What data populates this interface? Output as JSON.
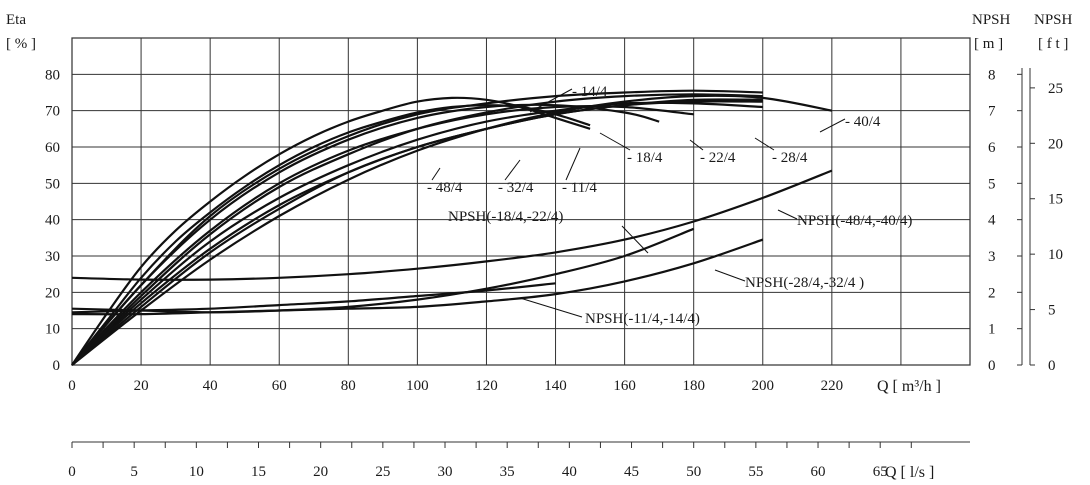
{
  "chart_data": {
    "type": "line",
    "left_axis": {
      "label_line1": "Eta",
      "label_line2": "[ % ]",
      "range": [
        0,
        90
      ],
      "ticks": [
        0,
        10,
        20,
        30,
        40,
        50,
        60,
        70,
        80
      ]
    },
    "npsh_m_axis": {
      "label_line1": "NPSH",
      "label_line2": "[ m ]",
      "range": [
        0,
        9
      ],
      "ticks": [
        0,
        1,
        2,
        3,
        4,
        5,
        6,
        7,
        8
      ]
    },
    "npsh_ft_axis": {
      "label_line1": "NPSH",
      "label_line2": "[ f t ]",
      "range": [
        0,
        29.5
      ],
      "ticks": [
        0,
        5,
        10,
        15,
        20,
        25
      ]
    },
    "x_axis": {
      "label": "Q [ m³/h ]",
      "range": [
        0,
        260
      ],
      "ticks": [
        0,
        20,
        40,
        60,
        80,
        100,
        120,
        140,
        160,
        180,
        200,
        220
      ]
    },
    "x2_axis": {
      "label": "Q [ l/s ]",
      "ticks": [
        0,
        5,
        10,
        15,
        20,
        25,
        30,
        35,
        40,
        45,
        50,
        55,
        60,
        65
      ]
    },
    "grid": true,
    "efficiency_series": [
      {
        "name": "- 14/4",
        "x": [
          0,
          10,
          20,
          30,
          40,
          50,
          60,
          70,
          80,
          90,
          100,
          110,
          120,
          130,
          140,
          150
        ],
        "y": [
          0,
          14,
          27,
          37,
          45,
          52,
          58,
          63,
          67,
          70,
          72.5,
          73.5,
          73,
          71,
          68,
          65
        ]
      },
      {
        "name": "- 11/4",
        "x": [
          0,
          10,
          20,
          30,
          40,
          50,
          60,
          70,
          80,
          90,
          100,
          110,
          120,
          130,
          140,
          150
        ],
        "y": [
          0,
          12,
          24,
          34,
          42,
          49,
          55,
          60,
          64,
          67,
          69.5,
          71,
          71.5,
          71,
          69,
          66
        ]
      },
      {
        "name": "- 18/4",
        "x": [
          0,
          20,
          40,
          60,
          80,
          100,
          120,
          140,
          160,
          170
        ],
        "y": [
          0,
          22,
          40,
          53,
          62,
          68,
          71,
          71.5,
          69.5,
          67
        ]
      },
      {
        "name": "- 22/4",
        "x": [
          0,
          20,
          40,
          60,
          80,
          100,
          120,
          140,
          160,
          180
        ],
        "y": [
          0,
          20,
          37,
          50,
          59,
          65,
          69,
          71,
          71,
          69
        ]
      },
      {
        "name": "- 28/4",
        "x": [
          0,
          20,
          40,
          60,
          80,
          100,
          120,
          140,
          160,
          180,
          200
        ],
        "y": [
          0,
          18,
          34,
          46,
          55,
          62,
          67,
          70,
          72,
          72,
          71
        ]
      },
      {
        "name": "- 32/4",
        "x": [
          0,
          20,
          40,
          60,
          80,
          100,
          120,
          140,
          160,
          180,
          200
        ],
        "y": [
          0,
          16,
          31,
          43,
          53,
          60,
          65,
          69,
          71.5,
          73,
          73
        ]
      },
      {
        "name": "- 48/4",
        "x": [
          0,
          20,
          40,
          60,
          80,
          100,
          120,
          140,
          160,
          180,
          200
        ],
        "y": [
          0,
          17,
          32,
          44,
          53,
          60,
          65,
          69,
          71.5,
          72.5,
          72.5
        ]
      },
      {
        "name": "- 40/4",
        "x": [
          0,
          20,
          40,
          60,
          80,
          100,
          120,
          140,
          160,
          180,
          200,
          220
        ],
        "y": [
          0,
          15,
          29,
          41,
          51,
          59,
          65,
          69.5,
          72.5,
          74,
          73.5,
          70
        ]
      },
      {
        "name": "",
        "x": [
          0,
          20,
          40,
          60,
          80,
          100,
          120,
          140,
          160,
          180,
          200
        ],
        "y": [
          0,
          22,
          41,
          54,
          63,
          69,
          72,
          74,
          75,
          75.5,
          75
        ]
      },
      {
        "name": "",
        "x": [
          0,
          20,
          40,
          60,
          80,
          100,
          120,
          140,
          160,
          180,
          200
        ],
        "y": [
          0,
          19,
          36,
          49,
          58,
          65,
          69.5,
          72.5,
          74,
          74.5,
          74
        ]
      }
    ],
    "npsh_series": [
      {
        "name": "NPSH(-11/4,-14/4)",
        "unit": "m",
        "x": [
          0,
          20,
          40,
          60,
          80,
          100,
          120,
          140
        ],
        "y": [
          1.45,
          1.5,
          1.55,
          1.65,
          1.75,
          1.9,
          2.05,
          2.25
        ]
      },
      {
        "name": "NPSH(-18/4,-22/4)",
        "unit": "m",
        "x": [
          0,
          20,
          40,
          60,
          80,
          100,
          120,
          140,
          160,
          180
        ],
        "y": [
          1.55,
          1.5,
          1.45,
          1.5,
          1.6,
          1.8,
          2.1,
          2.5,
          3.0,
          3.75
        ]
      },
      {
        "name": "NPSH(-28/4,-32/4 )",
        "unit": "m",
        "x": [
          0,
          20,
          40,
          60,
          80,
          100,
          120,
          140,
          160,
          180,
          200
        ],
        "y": [
          1.4,
          1.4,
          1.45,
          1.5,
          1.55,
          1.6,
          1.75,
          1.95,
          2.3,
          2.8,
          3.45
        ]
      },
      {
        "name": "NPSH(-48/4,-40/4)",
        "unit": "m",
        "x": [
          0,
          20,
          40,
          60,
          80,
          100,
          120,
          140,
          160,
          180,
          200,
          220
        ],
        "y": [
          2.4,
          2.35,
          2.35,
          2.4,
          2.5,
          2.65,
          2.85,
          3.1,
          3.45,
          3.95,
          4.6,
          5.35
        ]
      }
    ],
    "annotations": [
      {
        "text": "- 14/4",
        "series": "- 14/4"
      },
      {
        "text": "- 40/4",
        "series": "- 40/4"
      },
      {
        "text": "- 18/4",
        "series": "- 18/4"
      },
      {
        "text": "- 22/4",
        "series": "- 22/4"
      },
      {
        "text": "- 28/4",
        "series": "- 28/4"
      },
      {
        "text": "- 48/4",
        "series": "- 48/4"
      },
      {
        "text": "- 32/4",
        "series": "- 32/4"
      },
      {
        "text": "- 11/4",
        "series": "- 11/4"
      },
      {
        "text": "NPSH(-18/4,-22/4)",
        "series": "NPSH(-18/4,-22/4)"
      },
      {
        "text": "NPSH(-48/4,-40/4)",
        "series": "NPSH(-48/4,-40/4)"
      },
      {
        "text": "NPSH(-28/4,-32/4 )",
        "series": "NPSH(-28/4,-32/4 )"
      },
      {
        "text": "NPSH(-11/4,-14/4)",
        "series": "NPSH(-11/4,-14/4)"
      }
    ]
  }
}
